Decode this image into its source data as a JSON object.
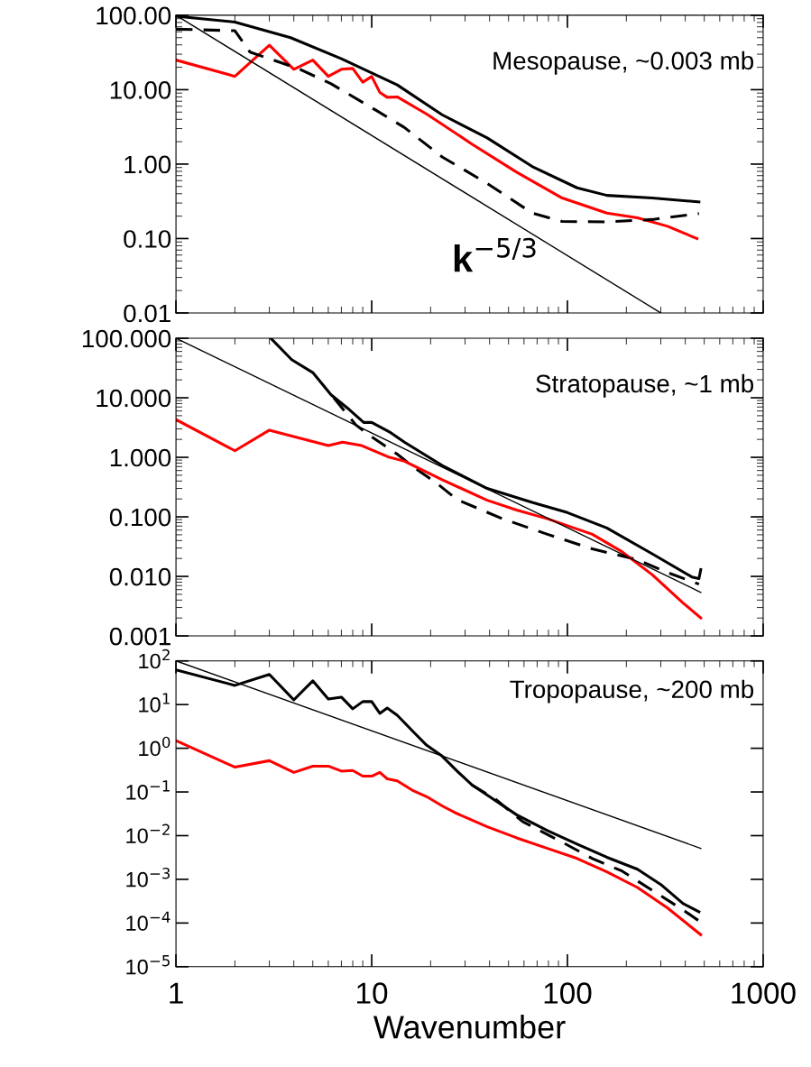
{
  "chart_data": [
    {
      "type": "line",
      "log": "xy",
      "xlim": [
        1,
        1000
      ],
      "ylim": [
        0.01,
        100
      ],
      "xticks": [
        1,
        10,
        100,
        1000
      ],
      "tick_labels": "y",
      "yticks": [
        {
          "value": 0.01,
          "label": "0.01"
        },
        {
          "value": 0.1,
          "label": "0.10"
        },
        {
          "value": 1,
          "label": "1.00"
        },
        {
          "value": 10,
          "label": "10.00"
        },
        {
          "value": 100,
          "label": "100.00"
        }
      ],
      "annotations": [
        "Mesopause, ~0.003 mb",
        "k$^{−5/3}$"
      ],
      "series": [
        {
          "color": "#000000",
          "line_style": "solid",
          "x": [
            1,
            2,
            3.85,
            7,
            13.5,
            22.9,
            38.9,
            66,
            112,
            159,
            271,
            470
          ],
          "values": [
            97,
            81,
            50,
            26,
            11.6,
            4.6,
            2.25,
            0.93,
            0.48,
            0.38,
            0.35,
            0.31
          ]
        },
        {
          "color": "#ff0000",
          "line_style": "solid",
          "x": [
            1,
            2,
            3,
            4,
            5,
            6,
            7,
            8,
            9,
            10,
            11,
            12,
            13.5,
            19.1,
            32.5,
            55,
            94,
            159,
            228,
            325,
            459
          ],
          "values": [
            25,
            15.1,
            39.5,
            18.8,
            25,
            15.1,
            18.8,
            19.3,
            12.6,
            15,
            9.2,
            7.9,
            8,
            4.7,
            1.86,
            0.78,
            0.35,
            0.22,
            0.19,
            0.146,
            0.1
          ]
        },
        {
          "color": "#000000",
          "line_style": "dashed",
          "x": [
            1,
            2,
            2.39,
            4.3,
            6.2,
            10.5,
            14.7,
            22.9,
            38.9,
            66,
            94,
            159,
            271,
            470
          ],
          "values": [
            65,
            62,
            32,
            18.8,
            12,
            5.3,
            3.1,
            1.25,
            0.55,
            0.22,
            0.17,
            0.167,
            0.18,
            0.217
          ]
        },
        {
          "color": "#000000",
          "line_style": "solid",
          "x": [
            1,
            300
          ],
          "values": [
            100,
            0.01
          ]
        }
      ]
    },
    {
      "type": "line",
      "log": "xy",
      "xlim": [
        1,
        1000
      ],
      "ylim": [
        0.001,
        100
      ],
      "xticks": [
        1,
        10,
        100,
        1000
      ],
      "tick_labels": "y",
      "yticks": [
        {
          "value": 0.001,
          "label": "0.001"
        },
        {
          "value": 0.01,
          "label": "0.010"
        },
        {
          "value": 0.1,
          "label": "0.100"
        },
        {
          "value": 1,
          "label": "1.000"
        },
        {
          "value": 10,
          "label": "10.000"
        },
        {
          "value": 100,
          "label": "100.000"
        }
      ],
      "annotations": [
        "Stratopause, ~1 mb"
      ],
      "series": [
        {
          "color": "#000000",
          "line_style": "solid",
          "x": [
            3.05,
            3.9,
            5,
            6.2,
            7.7,
            9.1,
            10,
            12.5,
            14.7,
            22.9,
            38.9,
            66,
            100,
            159,
            271,
            432,
            470,
            480
          ],
          "values": [
            100,
            43.6,
            26.5,
            11.2,
            6.3,
            3.85,
            3.85,
            2.6,
            1.8,
            0.73,
            0.3,
            0.175,
            0.118,
            0.065,
            0.024,
            0.0098,
            0.0092,
            0.013
          ]
        },
        {
          "color": "#000000",
          "line_style": "dashed",
          "x": [
            6.4,
            8.3,
            10,
            13.5,
            16.6,
            21.2,
            27.3,
            46.5,
            79,
            134,
            228,
            325,
            470
          ],
          "values": [
            10,
            3.5,
            2.2,
            1.13,
            0.66,
            0.38,
            0.195,
            0.093,
            0.051,
            0.029,
            0.019,
            0.0116,
            0.0074
          ]
        },
        {
          "color": "#ff0000",
          "line_style": "solid",
          "x": [
            1,
            2,
            3,
            6,
            7.1,
            8.9,
            12.1,
            14.7,
            22.9,
            38.9,
            55,
            79,
            134,
            190,
            271,
            389,
            480
          ],
          "values": [
            4.3,
            1.29,
            2.86,
            1.57,
            1.8,
            1.57,
            1.02,
            0.86,
            0.42,
            0.19,
            0.13,
            0.093,
            0.051,
            0.026,
            0.0107,
            0.0036,
            0.002
          ]
        },
        {
          "color": "#000000",
          "line_style": "solid",
          "x": [
            1,
            480
          ],
          "values": [
            100,
            0.0054
          ]
        }
      ]
    },
    {
      "type": "line",
      "log": "xy",
      "xlim": [
        1,
        1000
      ],
      "ylim": [
        1e-05,
        100
      ],
      "xticks": [
        1,
        10,
        100,
        1000
      ],
      "xlabel": "Wavenumber",
      "yticks": [
        {
          "value": 1e-05,
          "label": "10$^{−5}$"
        },
        {
          "value": 0.0001,
          "label": "10$^{−4}$"
        },
        {
          "value": 0.001,
          "label": "10$^{−3}$"
        },
        {
          "value": 0.01,
          "label": "10$^{−2}$"
        },
        {
          "value": 0.1,
          "label": "10$^{−1}$"
        },
        {
          "value": 1,
          "label": "10$^{0}$"
        },
        {
          "value": 10,
          "label": "10$^{1}$"
        },
        {
          "value": 100,
          "label": "10$^{2}$"
        }
      ],
      "annotations": [
        "Tropopause, ~200 mb"
      ],
      "series": [
        {
          "color": "#000000",
          "line_style": "solid",
          "x": [
            1,
            2,
            3,
            4,
            5,
            6,
            7,
            8,
            9,
            10,
            11,
            12,
            13.5,
            16.6,
            19.1,
            22.9,
            27.3,
            32.5,
            38.9,
            55,
            79,
            112,
            159,
            228,
            300,
            389,
            470
          ],
          "values": [
            62,
            27.5,
            49,
            12.8,
            35,
            13.4,
            14.8,
            8,
            11.7,
            11.7,
            6.3,
            8.3,
            5.7,
            2.2,
            1.17,
            0.66,
            0.3,
            0.145,
            0.085,
            0.03,
            0.013,
            0.0064,
            0.0032,
            0.0017,
            0.00076,
            0.00028,
            0.00018
          ]
        },
        {
          "color": "#000000",
          "line_style": "dashed",
          "x": [
            32.5,
            43,
            59,
            94,
            134,
            190,
            271,
            389,
            470
          ],
          "values": [
            0.145,
            0.068,
            0.021,
            0.0071,
            0.003,
            0.00155,
            0.00056,
            0.0002,
            0.000112
          ]
        },
        {
          "color": "#ff0000",
          "line_style": "solid",
          "x": [
            1,
            2,
            3,
            4,
            5,
            6,
            7,
            8,
            9,
            10,
            11,
            12,
            13.5,
            16.1,
            19.1,
            22.9,
            27.3,
            38.9,
            55,
            79,
            112,
            159,
            228,
            325,
            480
          ],
          "values": [
            1.5,
            0.37,
            0.52,
            0.28,
            0.39,
            0.39,
            0.3,
            0.31,
            0.23,
            0.23,
            0.28,
            0.2,
            0.18,
            0.11,
            0.078,
            0.048,
            0.032,
            0.016,
            0.0089,
            0.0051,
            0.003,
            0.00148,
            0.00065,
            0.00022,
            5.4e-05
          ]
        },
        {
          "color": "#000000",
          "line_style": "solid",
          "x": [
            1,
            480
          ],
          "values": [
            100,
            0.0051
          ]
        }
      ]
    }
  ]
}
